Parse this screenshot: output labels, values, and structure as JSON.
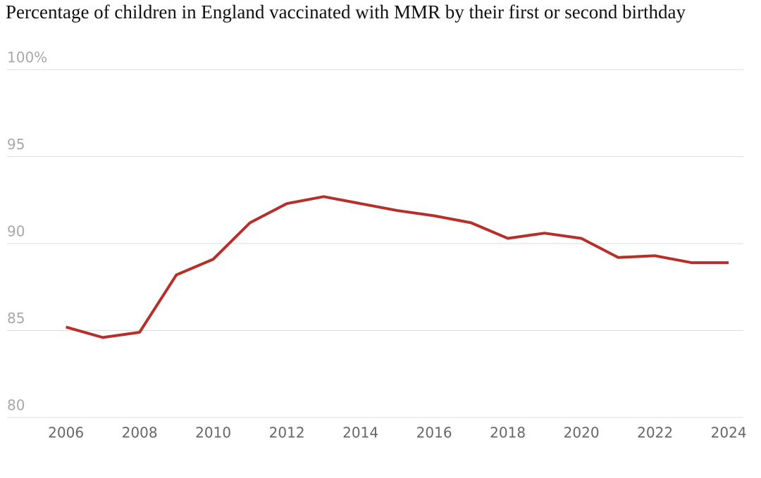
{
  "chart_data": {
    "type": "line",
    "title": "Percentage of children in England vaccinated with MMR by their first or second birthday",
    "x": [
      2006,
      2007,
      2008,
      2009,
      2010,
      2011,
      2012,
      2013,
      2014,
      2015,
      2016,
      2017,
      2018,
      2019,
      2020,
      2021,
      2022,
      2023,
      2024
    ],
    "series": [
      {
        "color": "#b5302a",
        "values": [
          85.2,
          84.6,
          84.9,
          88.2,
          89.1,
          91.2,
          92.3,
          92.7,
          92.3,
          91.9,
          91.6,
          91.2,
          90.3,
          90.6,
          90.3,
          89.2,
          89.3,
          88.9,
          88.9
        ]
      }
    ],
    "xlim": [
      2004.4,
      2024.4
    ],
    "xticks": [
      2006,
      2008,
      2010,
      2012,
      2014,
      2016,
      2018,
      2020,
      2022,
      2024
    ],
    "ylim": [
      80,
      100
    ],
    "yticks": [
      80,
      85,
      90,
      95,
      {
        "value": 100,
        "label": "100%"
      }
    ],
    "grid": true
  }
}
